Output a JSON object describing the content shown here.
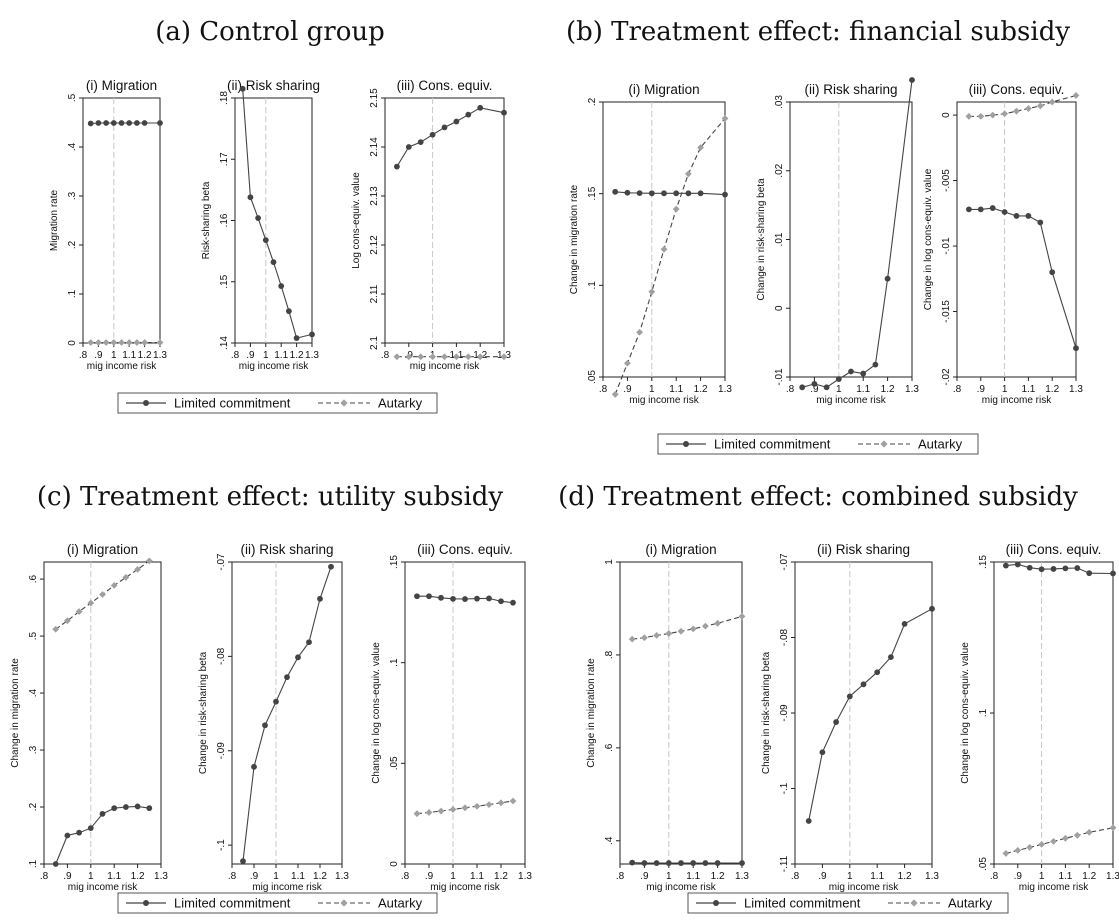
{
  "colors": {
    "limited": "#444444",
    "autarky": "#a0a0a0",
    "axis": "#222222",
    "vline": "#c8c8c8"
  },
  "legend": {
    "limited": "Limited commitment",
    "autarky": "Autarky"
  },
  "panels": [
    {
      "title": "(a) Control group"
    },
    {
      "title": "(b) Treatment effect: financial subsidy"
    },
    {
      "title": "(c) Treatment effect: utility subsidy"
    },
    {
      "title": "(d) Treatment effect: combined subsidy"
    }
  ],
  "chart_data": [
    {
      "panel": "a",
      "type": "line",
      "title": "(i) Migration",
      "xlabel": "mig income risk",
      "ylabel": "Migration rate",
      "xticks": [
        ".8",
        ".9",
        "1",
        "1.1",
        "1.2",
        "1.3"
      ],
      "xtick_values": [
        0.8,
        0.9,
        1.0,
        1.1,
        1.2,
        1.3
      ],
      "yticks": [
        "0",
        ".1",
        ".2",
        ".3",
        ".4",
        ".5"
      ],
      "ytick_values": [
        0,
        0.1,
        0.2,
        0.3,
        0.4,
        0.5
      ],
      "xlim": [
        0.8,
        1.3
      ],
      "ylim": [
        0,
        0.5
      ],
      "vline": 1.0,
      "series": [
        {
          "name": "Limited commitment",
          "x": [
            0.85,
            0.9,
            0.95,
            1.0,
            1.05,
            1.1,
            1.15,
            1.2,
            1.3
          ],
          "y": [
            0.448,
            0.449,
            0.449,
            0.449,
            0.449,
            0.449,
            0.449,
            0.449,
            0.449
          ]
        },
        {
          "name": "Autarky",
          "x": [
            0.85,
            0.9,
            0.95,
            1.0,
            1.05,
            1.1,
            1.15,
            1.2,
            1.3
          ],
          "y": [
            0.001,
            0.001,
            0.001,
            0.001,
            0.001,
            0.001,
            0.001,
            0.001,
            0.001
          ]
        }
      ]
    },
    {
      "panel": "a",
      "type": "line",
      "title": "(ii) Risk sharing",
      "xlabel": "mig income risk",
      "ylabel": "Risk-sharing beta",
      "xticks": [
        ".8",
        ".9",
        "1",
        "1.1",
        "1.2",
        "1.3"
      ],
      "xtick_values": [
        0.8,
        0.9,
        1.0,
        1.1,
        1.2,
        1.3
      ],
      "yticks": [
        ".14",
        ".15",
        ".16",
        ".17",
        ".18"
      ],
      "ytick_values": [
        0.14,
        0.15,
        0.16,
        0.17,
        0.18
      ],
      "xlim": [
        0.8,
        1.3
      ],
      "ylim": [
        0.14,
        0.18
      ],
      "vline": 1.0,
      "series": [
        {
          "name": "Limited commitment",
          "x": [
            0.85,
            0.9,
            0.95,
            1.0,
            1.05,
            1.1,
            1.15,
            1.2,
            1.3
          ],
          "y": [
            0.1815,
            0.1638,
            0.1604,
            0.1568,
            0.1532,
            0.1493,
            0.1452,
            0.1408,
            0.1414
          ]
        }
      ]
    },
    {
      "panel": "a",
      "type": "line",
      "title": "(iii) Cons. equiv.",
      "xlabel": "mig income risk",
      "ylabel": "Log cons-equiv. value",
      "xticks": [
        ".8",
        ".9",
        "1",
        "1.1",
        "1.2",
        "1.3"
      ],
      "xtick_values": [
        0.8,
        0.9,
        1.0,
        1.1,
        1.2,
        1.3
      ],
      "yticks": [
        "2.1",
        "2.11",
        "2.12",
        "2.13",
        "2.14",
        "2.15"
      ],
      "ytick_values": [
        2.1,
        2.11,
        2.12,
        2.13,
        2.14,
        2.15
      ],
      "xlim": [
        0.8,
        1.3
      ],
      "ylim": [
        2.1,
        2.15
      ],
      "vline": 1.0,
      "series": [
        {
          "name": "Limited commitment",
          "x": [
            0.85,
            0.9,
            0.95,
            1.0,
            1.05,
            1.1,
            1.15,
            1.2,
            1.3
          ],
          "y": [
            2.136,
            2.14,
            2.141,
            2.1425,
            2.144,
            2.1452,
            2.1466,
            2.148,
            2.147
          ]
        },
        {
          "name": "Autarky",
          "x": [
            0.85,
            0.9,
            0.95,
            1.0,
            1.05,
            1.1,
            1.15,
            1.2,
            1.3
          ],
          "y": [
            2.0972,
            2.0972,
            2.0972,
            2.0972,
            2.0972,
            2.0972,
            2.0972,
            2.0972,
            2.0972
          ]
        }
      ]
    },
    {
      "panel": "b",
      "type": "line",
      "title": "(i) Migration",
      "xlabel": "mig income risk",
      "ylabel": "Change in migration rate",
      "xticks": [
        ".8",
        ".9",
        "1",
        "1.1",
        "1.2",
        "1.3"
      ],
      "xtick_values": [
        0.8,
        0.9,
        1.0,
        1.1,
        1.2,
        1.3
      ],
      "yticks": [
        ".05",
        ".1",
        ".15",
        ".2"
      ],
      "ytick_values": [
        0.05,
        0.1,
        0.15,
        0.2
      ],
      "xlim": [
        0.8,
        1.3
      ],
      "ylim": [
        0.05,
        0.2
      ],
      "vline": 1.0,
      "series": [
        {
          "name": "Limited commitment",
          "x": [
            0.85,
            0.9,
            0.95,
            1.0,
            1.05,
            1.1,
            1.15,
            1.2,
            1.3
          ],
          "y": [
            0.151,
            0.1505,
            0.1503,
            0.1502,
            0.1502,
            0.1502,
            0.1502,
            0.1502,
            0.1495
          ]
        },
        {
          "name": "Autarky",
          "x": [
            0.85,
            0.9,
            0.95,
            1.0,
            1.05,
            1.1,
            1.15,
            1.2,
            1.3
          ],
          "y": [
            0.0405,
            0.0575,
            0.0744,
            0.0965,
            0.1197,
            0.1416,
            0.1608,
            0.1752,
            0.191
          ]
        }
      ]
    },
    {
      "panel": "b",
      "type": "line",
      "title": "(ii) Risk sharing",
      "xlabel": "mig income risk",
      "ylabel": "Change in risk-sharing beta",
      "xticks": [
        ".8",
        ".9",
        "1",
        "1.1",
        "1.2",
        "1.3"
      ],
      "xtick_values": [
        0.8,
        0.9,
        1.0,
        1.1,
        1.2,
        1.3
      ],
      "yticks": [
        "-.01",
        "0",
        ".01",
        ".02",
        ".03"
      ],
      "ytick_values": [
        -0.01,
        0,
        0.01,
        0.02,
        0.03
      ],
      "xlim": [
        0.8,
        1.3
      ],
      "ylim": [
        -0.01,
        0.03
      ],
      "vline": 1.0,
      "series": [
        {
          "name": "Limited commitment",
          "x": [
            0.85,
            0.9,
            0.95,
            1.0,
            1.05,
            1.1,
            1.15,
            1.2,
            1.3
          ],
          "y": [
            -0.0115,
            -0.011,
            -0.0115,
            -0.0103,
            -0.0092,
            -0.0095,
            -0.0082,
            0.0043,
            0.0332
          ]
        }
      ]
    },
    {
      "panel": "b",
      "type": "line",
      "title": "(iii) Cons. equiv.",
      "xlabel": "mig income risk",
      "ylabel": "Change in log cons-equiv. value",
      "xticks": [
        ".8",
        ".9",
        "1",
        "1.1",
        "1.2",
        "1.3"
      ],
      "xtick_values": [
        0.8,
        0.9,
        1.0,
        1.1,
        1.2,
        1.3
      ],
      "yticks": [
        "-.02",
        "-.015",
        "-.01",
        "-.005",
        "0"
      ],
      "ytick_values": [
        -0.02,
        -0.015,
        -0.01,
        -0.005,
        0
      ],
      "xlim": [
        0.8,
        1.3
      ],
      "ylim": [
        -0.02,
        0.001
      ],
      "vline": 1.0,
      "series": [
        {
          "name": "Limited commitment",
          "x": [
            0.85,
            0.9,
            0.95,
            1.0,
            1.05,
            1.1,
            1.15,
            1.2,
            1.3
          ],
          "y": [
            -0.0072,
            -0.0072,
            -0.0071,
            -0.0074,
            -0.0077,
            -0.0077,
            -0.0082,
            -0.012,
            -0.0178
          ]
        },
        {
          "name": "Autarky",
          "x": [
            0.85,
            0.9,
            0.95,
            1.0,
            1.05,
            1.1,
            1.15,
            1.2,
            1.3
          ],
          "y": [
            -0.0001,
            -0.0001,
            0.0,
            0.0001,
            0.0003,
            0.0005,
            0.0007,
            0.001,
            0.0015
          ]
        }
      ]
    },
    {
      "panel": "c",
      "type": "line",
      "title": "(i) Migration",
      "xlabel": "mig income risk",
      "ylabel": "Change in migration rate",
      "xticks": [
        ".8",
        ".9",
        "1",
        "1.1",
        "1.2",
        "1.3"
      ],
      "xtick_values": [
        0.8,
        0.9,
        1.0,
        1.1,
        1.2,
        1.3
      ],
      "yticks": [
        ".1",
        ".2",
        ".3",
        ".4",
        ".5",
        ".6"
      ],
      "ytick_values": [
        0.1,
        0.2,
        0.3,
        0.4,
        0.5,
        0.6
      ],
      "xlim": [
        0.8,
        1.3
      ],
      "ylim": [
        0.1,
        0.63
      ],
      "vline": 1.0,
      "series": [
        {
          "name": "Limited commitment",
          "x": [
            0.85,
            0.9,
            0.95,
            1.0,
            1.05,
            1.1,
            1.15,
            1.2,
            1.25
          ],
          "y": [
            0.1,
            0.15,
            0.155,
            0.163,
            0.188,
            0.198,
            0.2,
            0.201,
            0.198
          ]
        },
        {
          "name": "Autarky",
          "x": [
            0.85,
            0.9,
            0.95,
            1.0,
            1.05,
            1.1,
            1.15,
            1.2,
            1.25
          ],
          "y": [
            0.512,
            0.527,
            0.543,
            0.558,
            0.573,
            0.589,
            0.603,
            0.617,
            0.632
          ]
        }
      ]
    },
    {
      "panel": "c",
      "type": "line",
      "title": "(ii) Risk sharing",
      "xlabel": "mig income risk",
      "ylabel": "Change in risk-sharing beta",
      "xticks": [
        ".8",
        ".9",
        "1",
        "1.1",
        "1.2",
        "1.3"
      ],
      "xtick_values": [
        0.8,
        0.9,
        1.0,
        1.1,
        1.2,
        1.3
      ],
      "yticks": [
        "-.1",
        "-.09",
        "-.08",
        "-.07"
      ],
      "ytick_values": [
        -0.1,
        -0.09,
        -0.08,
        -0.07
      ],
      "xlim": [
        0.8,
        1.3
      ],
      "ylim": [
        -0.102,
        -0.07
      ],
      "vline": 1.0,
      "series": [
        {
          "name": "Limited commitment",
          "x": [
            0.85,
            0.9,
            0.95,
            1.0,
            1.05,
            1.1,
            1.15,
            1.2,
            1.25
          ],
          "y": [
            -0.1017,
            -0.0917,
            -0.0873,
            -0.0848,
            -0.0822,
            -0.0801,
            -0.0785,
            -0.0739,
            -0.0705
          ]
        }
      ]
    },
    {
      "panel": "c",
      "type": "line",
      "title": "(iii) Cons. equiv.",
      "xlabel": "mig income risk",
      "ylabel": "Change in log cons-equiv. value",
      "xticks": [
        ".8",
        ".9",
        "1",
        "1.1",
        "1.2",
        "1.3"
      ],
      "xtick_values": [
        0.8,
        0.9,
        1.0,
        1.1,
        1.2,
        1.3
      ],
      "yticks": [
        "0",
        ".05",
        ".1",
        ".15"
      ],
      "ytick_values": [
        0,
        0.05,
        0.1,
        0.15
      ],
      "xlim": [
        0.8,
        1.3
      ],
      "ylim": [
        0,
        0.15
      ],
      "vline": 1.0,
      "series": [
        {
          "name": "Limited commitment",
          "x": [
            0.85,
            0.9,
            0.95,
            1.0,
            1.05,
            1.1,
            1.15,
            1.2,
            1.25
          ],
          "y": [
            0.133,
            0.133,
            0.1322,
            0.1317,
            0.1316,
            0.1318,
            0.1319,
            0.1305,
            0.1298
          ]
        },
        {
          "name": "Autarky",
          "x": [
            0.85,
            0.9,
            0.95,
            1.0,
            1.05,
            1.1,
            1.15,
            1.2,
            1.25
          ],
          "y": [
            0.025,
            0.0256,
            0.0263,
            0.0271,
            0.0279,
            0.0287,
            0.0295,
            0.0304,
            0.0313
          ]
        }
      ]
    },
    {
      "panel": "d",
      "type": "line",
      "title": "(i) Migration",
      "xlabel": "mig income risk",
      "ylabel": "Change in migration rate",
      "xticks": [
        ".8",
        ".9",
        "1",
        "1.1",
        "1.2",
        "1.3"
      ],
      "xtick_values": [
        0.8,
        0.9,
        1.0,
        1.1,
        1.2,
        1.3
      ],
      "yticks": [
        ".4",
        ".6",
        ".8",
        "1"
      ],
      "ytick_values": [
        0.4,
        0.6,
        0.8,
        1.0
      ],
      "xlim": [
        0.8,
        1.3
      ],
      "ylim": [
        0.35,
        1.0
      ],
      "vline": 1.0,
      "series": [
        {
          "name": "Limited commitment",
          "x": [
            0.85,
            0.9,
            0.95,
            1.0,
            1.05,
            1.1,
            1.15,
            1.2,
            1.3
          ],
          "y": [
            0.353,
            0.352,
            0.352,
            0.352,
            0.352,
            0.352,
            0.352,
            0.352,
            0.352
          ]
        },
        {
          "name": "Autarky",
          "x": [
            0.85,
            0.9,
            0.95,
            1.0,
            1.05,
            1.1,
            1.15,
            1.2,
            1.3
          ],
          "y": [
            0.834,
            0.837,
            0.842,
            0.846,
            0.851,
            0.856,
            0.862,
            0.868,
            0.883
          ]
        }
      ]
    },
    {
      "panel": "d",
      "type": "line",
      "title": "(ii) Risk sharing",
      "xlabel": "mig income risk",
      "ylabel": "Change in risk-sharing beta",
      "xticks": [
        ".8",
        ".9",
        "1",
        "1.1",
        "1.2",
        "1.3"
      ],
      "xtick_values": [
        0.8,
        0.9,
        1.0,
        1.1,
        1.2,
        1.3
      ],
      "yticks": [
        "-.11",
        "-.1",
        "-.09",
        "-.08",
        "-.07"
      ],
      "ytick_values": [
        -0.11,
        -0.1,
        -0.09,
        -0.08,
        -0.07
      ],
      "xlim": [
        0.8,
        1.3
      ],
      "ylim": [
        -0.11,
        -0.07
      ],
      "vline": 1.0,
      "series": [
        {
          "name": "Limited commitment",
          "x": [
            0.85,
            0.9,
            0.95,
            1.0,
            1.05,
            1.1,
            1.15,
            1.2,
            1.3
          ],
          "y": [
            -0.1043,
            -0.0952,
            -0.0912,
            -0.0878,
            -0.0862,
            -0.0846,
            -0.0826,
            -0.0782,
            -0.0762
          ]
        }
      ]
    },
    {
      "panel": "d",
      "type": "line",
      "title": "(iii) Cons. equiv.",
      "xlabel": "mig income risk",
      "ylabel": "Change in log cons-equiv. value",
      "xticks": [
        ".8",
        ".9",
        "1",
        "1.1",
        "1.2",
        "1.3"
      ],
      "xtick_values": [
        0.8,
        0.9,
        1.0,
        1.1,
        1.2,
        1.3
      ],
      "yticks": [
        ".05",
        ".1",
        ".15"
      ],
      "ytick_values": [
        0.05,
        0.1,
        0.15
      ],
      "xlim": [
        0.8,
        1.3
      ],
      "ylim": [
        0.05,
        0.15
      ],
      "vline": 1.0,
      "series": [
        {
          "name": "Limited commitment",
          "x": [
            0.85,
            0.9,
            0.95,
            1.0,
            1.05,
            1.1,
            1.15,
            1.2,
            1.3
          ],
          "y": [
            0.1488,
            0.1492,
            0.1481,
            0.1476,
            0.1477,
            0.1479,
            0.148,
            0.1463,
            0.1462
          ]
        },
        {
          "name": "Autarky",
          "x": [
            0.85,
            0.9,
            0.95,
            1.0,
            1.05,
            1.1,
            1.15,
            1.2,
            1.3
          ],
          "y": [
            0.0535,
            0.0545,
            0.0555,
            0.0565,
            0.0575,
            0.0585,
            0.0595,
            0.0605,
            0.062
          ]
        }
      ]
    }
  ]
}
